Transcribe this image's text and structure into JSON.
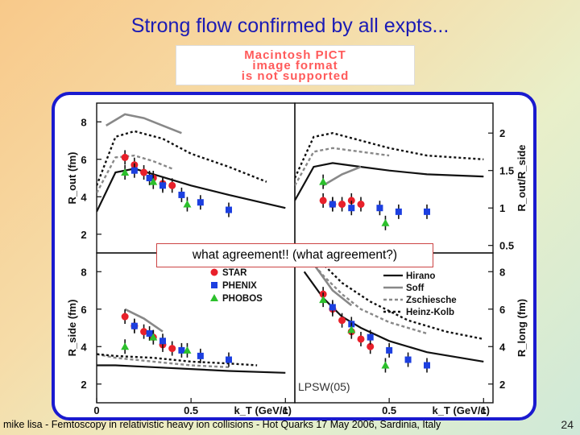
{
  "slide": {
    "title": "Strong flow confirmed by all expts...",
    "placeholder_lines": [
      "Macintosh PICT",
      "image format",
      "is not supported"
    ],
    "callout": "what agreement!!  (what agreement?)",
    "source": "LPSW(05)",
    "footer": "mike lisa - Femtoscopy in relativistic heavy ion collisions - Hot Quarks 17 May 2006, Sardinia, Italy",
    "page_number": "24",
    "colors": {
      "title": "#1b1bb5",
      "frame": "#1a1acf",
      "star": "#e8202a",
      "phenix": "#1c3fe0",
      "phobos": "#2cc02c"
    }
  },
  "chart_data": [
    {
      "type": "scatter",
      "panel": "top-left",
      "ylabel": "R_out (fm)",
      "ylim": [
        1,
        9
      ],
      "yticks": [
        "2",
        "4",
        "6",
        "8"
      ],
      "xlim": [
        0,
        1.05
      ],
      "series": [
        {
          "name": "STAR",
          "x": [
            0.15,
            0.2,
            0.25,
            0.3,
            0.35,
            0.4
          ],
          "y": [
            6.1,
            5.7,
            5.3,
            5.0,
            4.7,
            4.6
          ]
        },
        {
          "name": "PHENIX",
          "x": [
            0.2,
            0.28,
            0.35,
            0.45,
            0.55,
            0.7
          ],
          "y": [
            5.4,
            5.0,
            4.6,
            4.1,
            3.7,
            3.3
          ]
        },
        {
          "name": "PHOBOS",
          "x": [
            0.15,
            0.3,
            0.48
          ],
          "y": [
            5.3,
            4.8,
            3.6
          ]
        },
        {
          "name": "Hirano",
          "x": [
            0.0,
            0.1,
            0.2,
            0.3,
            0.5,
            0.7,
            1.0
          ],
          "y": [
            3.2,
            5.3,
            5.5,
            5.2,
            4.6,
            4.1,
            3.4
          ]
        },
        {
          "name": "Soff",
          "x": [
            0.05,
            0.15,
            0.25,
            0.35,
            0.45
          ],
          "y": [
            7.8,
            8.4,
            8.2,
            7.8,
            7.4
          ]
        },
        {
          "name": "Zschiesche",
          "x": [
            0.0,
            0.1,
            0.2,
            0.3,
            0.4
          ],
          "y": [
            4.2,
            6.1,
            6.2,
            5.9,
            5.5
          ]
        },
        {
          "name": "Heinz-Kolb",
          "x": [
            0.0,
            0.1,
            0.2,
            0.35,
            0.5,
            0.7,
            0.9
          ],
          "y": [
            4.6,
            7.2,
            7.5,
            7.1,
            6.3,
            5.6,
            4.8
          ]
        }
      ]
    },
    {
      "type": "scatter",
      "panel": "top-right",
      "ylabel": "R_out/R_side",
      "ylim": [
        0.4,
        2.4
      ],
      "yticks": [
        "0.5",
        "1",
        "1.5",
        "2"
      ],
      "xlim": [
        0,
        1.05
      ],
      "series": [
        {
          "name": "STAR",
          "x": [
            0.15,
            0.2,
            0.25,
            0.3,
            0.35
          ],
          "y": [
            1.1,
            1.05,
            1.05,
            1.1,
            1.05
          ]
        },
        {
          "name": "PHENIX",
          "x": [
            0.2,
            0.3,
            0.45,
            0.55,
            0.7
          ],
          "y": [
            1.05,
            1.0,
            1.0,
            0.95,
            0.95
          ]
        },
        {
          "name": "PHOBOS",
          "x": [
            0.15,
            0.48
          ],
          "y": [
            1.35,
            0.8
          ]
        },
        {
          "name": "Hirano",
          "x": [
            0.0,
            0.1,
            0.2,
            0.35,
            0.5,
            0.7,
            1.0
          ],
          "y": [
            1.1,
            1.55,
            1.6,
            1.55,
            1.5,
            1.45,
            1.42
          ]
        },
        {
          "name": "Soff",
          "x": [
            0.15,
            0.25,
            0.35
          ],
          "y": [
            1.3,
            1.45,
            1.55
          ]
        },
        {
          "name": "Zschiesche",
          "x": [
            0.0,
            0.1,
            0.2,
            0.35,
            0.5
          ],
          "y": [
            1.3,
            1.75,
            1.8,
            1.75,
            1.7
          ]
        },
        {
          "name": "Heinz-Kolb",
          "x": [
            0.0,
            0.1,
            0.2,
            0.35,
            0.5,
            0.7,
            1.0
          ],
          "y": [
            1.4,
            1.95,
            2.0,
            1.9,
            1.8,
            1.7,
            1.65
          ]
        }
      ]
    },
    {
      "type": "scatter",
      "panel": "bottom-left",
      "ylabel": "R_side (fm)",
      "ylim": [
        1,
        9
      ],
      "yticks": [
        "2",
        "4",
        "6",
        "8"
      ],
      "xlim": [
        0,
        1.05
      ],
      "xticks": [
        "0",
        "0.5",
        "1"
      ],
      "xlabel": "k_T (GeV/c)",
      "series": [
        {
          "name": "STAR",
          "x": [
            0.15,
            0.2,
            0.25,
            0.3,
            0.35,
            0.4
          ],
          "y": [
            5.6,
            5.1,
            4.8,
            4.5,
            4.1,
            3.9
          ]
        },
        {
          "name": "PHENIX",
          "x": [
            0.2,
            0.28,
            0.35,
            0.45,
            0.55,
            0.7
          ],
          "y": [
            5.1,
            4.7,
            4.3,
            3.8,
            3.5,
            3.3
          ]
        },
        {
          "name": "PHOBOS",
          "x": [
            0.15,
            0.3,
            0.48
          ],
          "y": [
            4.0,
            4.5,
            3.8
          ]
        },
        {
          "name": "Hirano",
          "x": [
            0.0,
            0.1,
            0.3,
            0.5,
            0.7,
            1.0
          ],
          "y": [
            3.0,
            3.0,
            2.9,
            2.8,
            2.7,
            2.6
          ]
        },
        {
          "name": "Soff",
          "x": [
            0.15,
            0.25,
            0.35
          ],
          "y": [
            6.0,
            5.5,
            4.8
          ]
        },
        {
          "name": "Zschiesche",
          "x": [
            0.0,
            0.1,
            0.3,
            0.5,
            0.7
          ],
          "y": [
            3.6,
            3.4,
            3.2,
            3.0,
            2.9
          ]
        },
        {
          "name": "Heinz-Kolb",
          "x": [
            0.0,
            0.1,
            0.3,
            0.5,
            0.7,
            0.85
          ],
          "y": [
            3.6,
            3.5,
            3.4,
            3.2,
            3.1,
            3.0
          ]
        }
      ]
    },
    {
      "type": "scatter",
      "panel": "bottom-right",
      "ylabel": "R_long (fm)",
      "ylim": [
        1,
        9
      ],
      "yticks": [
        "2",
        "4",
        "6",
        "8"
      ],
      "xlim": [
        0,
        1.05
      ],
      "xticks": [
        "0.5",
        "1"
      ],
      "xlabel": "k_T (GeV/c)",
      "series": [
        {
          "name": "STAR",
          "x": [
            0.15,
            0.2,
            0.25,
            0.3,
            0.35,
            0.4
          ],
          "y": [
            6.8,
            6.0,
            5.4,
            4.8,
            4.4,
            4.0
          ]
        },
        {
          "name": "PHENIX",
          "x": [
            0.2,
            0.3,
            0.4,
            0.5,
            0.6,
            0.7
          ],
          "y": [
            6.1,
            5.2,
            4.5,
            3.8,
            3.3,
            3.0
          ]
        },
        {
          "name": "PHOBOS",
          "x": [
            0.15,
            0.3,
            0.48
          ],
          "y": [
            6.5,
            4.9,
            3.0
          ]
        },
        {
          "name": "Hirano",
          "x": [
            0.05,
            0.15,
            0.25,
            0.35,
            0.5,
            0.7,
            1.0
          ],
          "y": [
            8.0,
            6.6,
            5.6,
            5.0,
            4.3,
            3.7,
            3.2
          ]
        },
        {
          "name": "Soff",
          "x": [
            0.1,
            0.2,
            0.3
          ],
          "y": [
            8.4,
            7.0,
            6.2
          ]
        },
        {
          "name": "Zschiesche",
          "x": [
            0.05,
            0.15,
            0.25,
            0.35,
            0.5,
            0.7
          ],
          "y": [
            9.0,
            7.8,
            6.8,
            6.0,
            5.3,
            4.7
          ]
        },
        {
          "name": "Heinz-Kolb",
          "x": [
            0.05,
            0.15,
            0.25,
            0.4,
            0.6,
            0.8,
            1.0
          ],
          "y": [
            9.0,
            8.4,
            7.4,
            6.4,
            5.4,
            4.8,
            4.4
          ]
        }
      ]
    }
  ],
  "legend": {
    "experiments": [
      "STAR",
      "PHENIX",
      "PHOBOS"
    ],
    "models": [
      "Hirano",
      "Soff",
      "Zschiesche",
      "Heinz-Kolb"
    ]
  }
}
